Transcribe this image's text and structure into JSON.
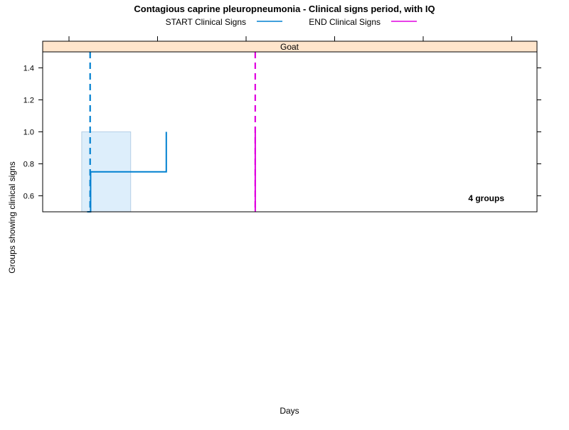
{
  "chart_data": {
    "type": "line",
    "title": "Contagious caprine pleuropneumonia - Clinical signs period, with IQ",
    "xlabel": "Days",
    "ylabel": "Groups showing clinical signs",
    "panel_label": "Goat",
    "annotation": "4 groups",
    "ylim": [
      0.5,
      1.5
    ],
    "yticks": [
      0.6,
      0.8,
      1.0,
      1.2,
      1.4
    ],
    "ytick_labels": [
      "0.6",
      "0.8",
      "1.0",
      "1.2",
      "1.4"
    ],
    "xlim": [
      0,
      100
    ],
    "grid": false,
    "legend_position": "top",
    "legend": [
      {
        "name": "START Clinical Signs",
        "color": "#0080d0"
      },
      {
        "name": "END Clinical Signs",
        "color": "#e000e0"
      }
    ],
    "series": [
      {
        "name": "START Clinical Signs",
        "color": "#0080d0",
        "step_points": [
          [
            9.0,
            0.5
          ],
          [
            9.7,
            0.5
          ],
          [
            9.7,
            0.75
          ],
          [
            25.0,
            0.75
          ],
          [
            25.0,
            1.0
          ]
        ],
        "median": 9.6,
        "iq_range": [
          7.9,
          17.8
        ],
        "iq_ymax": 1.0
      },
      {
        "name": "END Clinical Signs",
        "color": "#e000e0",
        "step_points": [
          [
            43.0,
            0.5
          ],
          [
            43.0,
            1.03
          ]
        ],
        "median": 43.0
      }
    ]
  }
}
